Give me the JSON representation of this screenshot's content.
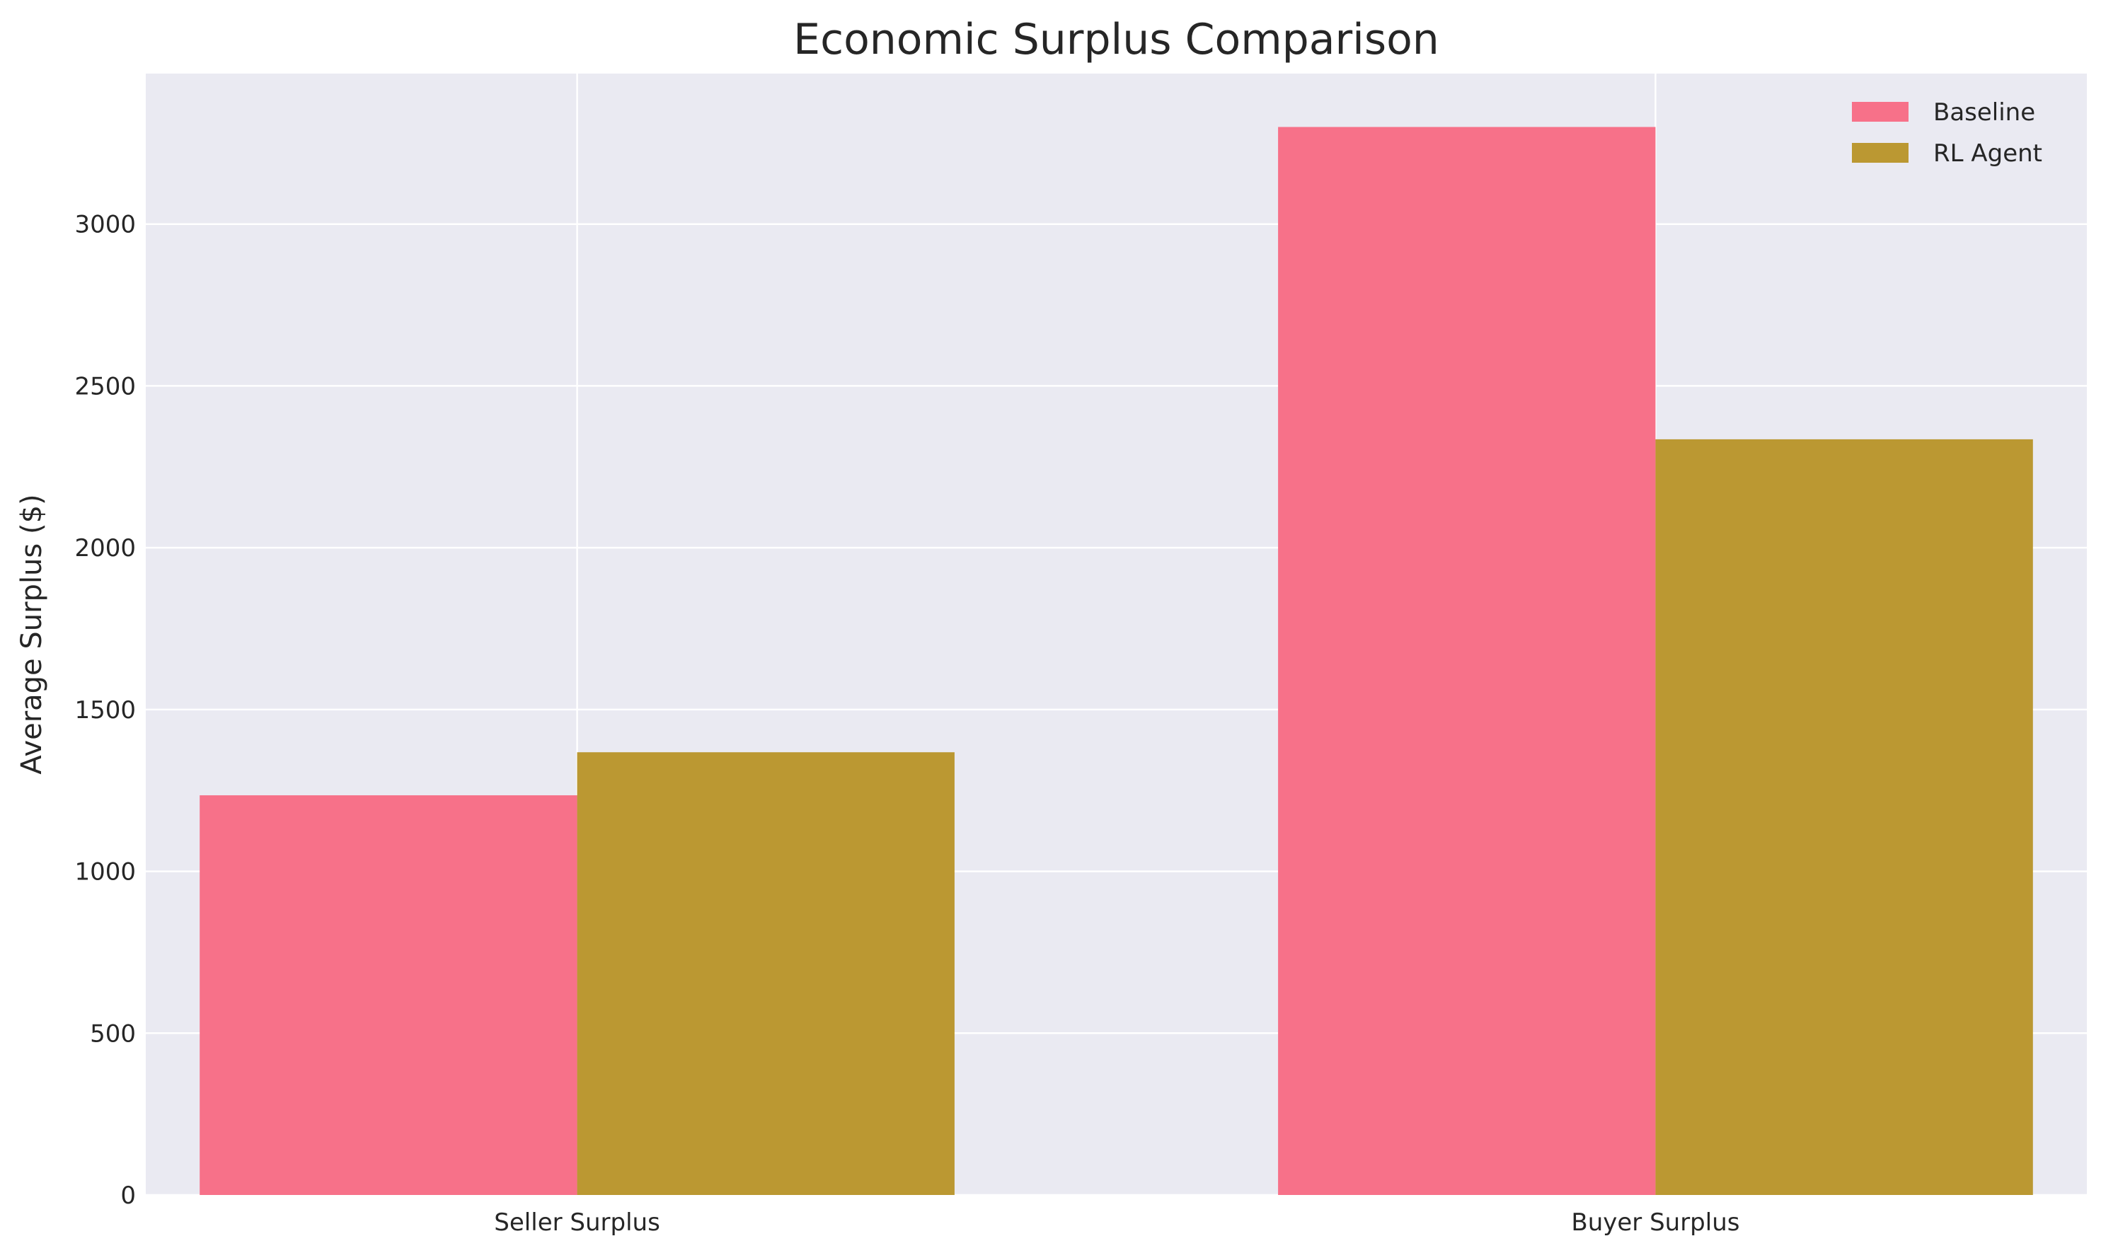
{
  "chart_data": {
    "type": "bar",
    "title": "Economic Surplus Comparison",
    "xlabel": "",
    "ylabel": "Average Surplus ($)",
    "categories": [
      "Seller Surplus",
      "Buyer Surplus"
    ],
    "series": [
      {
        "name": "Baseline",
        "values": [
          1235,
          3300
        ],
        "color": "#f77189"
      },
      {
        "name": "RL Agent",
        "values": [
          1368,
          2335
        ],
        "color": "#bb9832"
      }
    ],
    "ylim": [
      0,
      3465
    ],
    "yticks": [
      0,
      500,
      1000,
      1500,
      2000,
      2500,
      3000
    ],
    "grid": true,
    "legend": "top-right",
    "plot_background": "#eaeaf2",
    "grid_color": "#ffffff"
  }
}
